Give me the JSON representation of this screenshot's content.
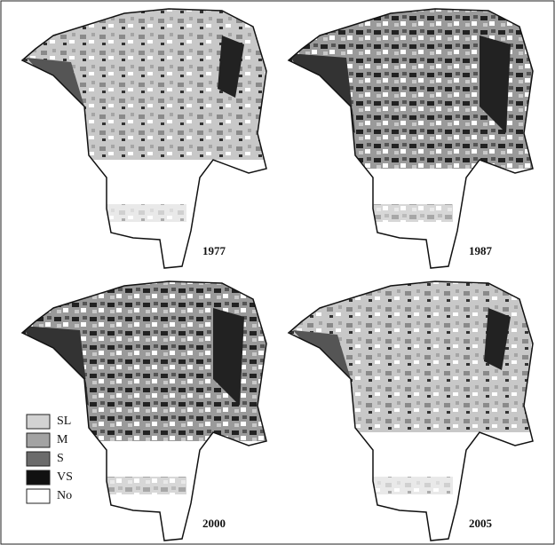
{
  "panels": [
    {
      "year": "1977"
    },
    {
      "year": "1987"
    },
    {
      "year": "2000"
    },
    {
      "year": "2005"
    }
  ],
  "legend": [
    {
      "label": "SL",
      "color": "#d2d2d2"
    },
    {
      "label": "M",
      "color": "#a3a3a3"
    },
    {
      "label": "S",
      "color": "#6b6b6b"
    },
    {
      "label": "VS",
      "color": "#111111"
    },
    {
      "label": "No",
      "color": "#ffffff"
    }
  ]
}
